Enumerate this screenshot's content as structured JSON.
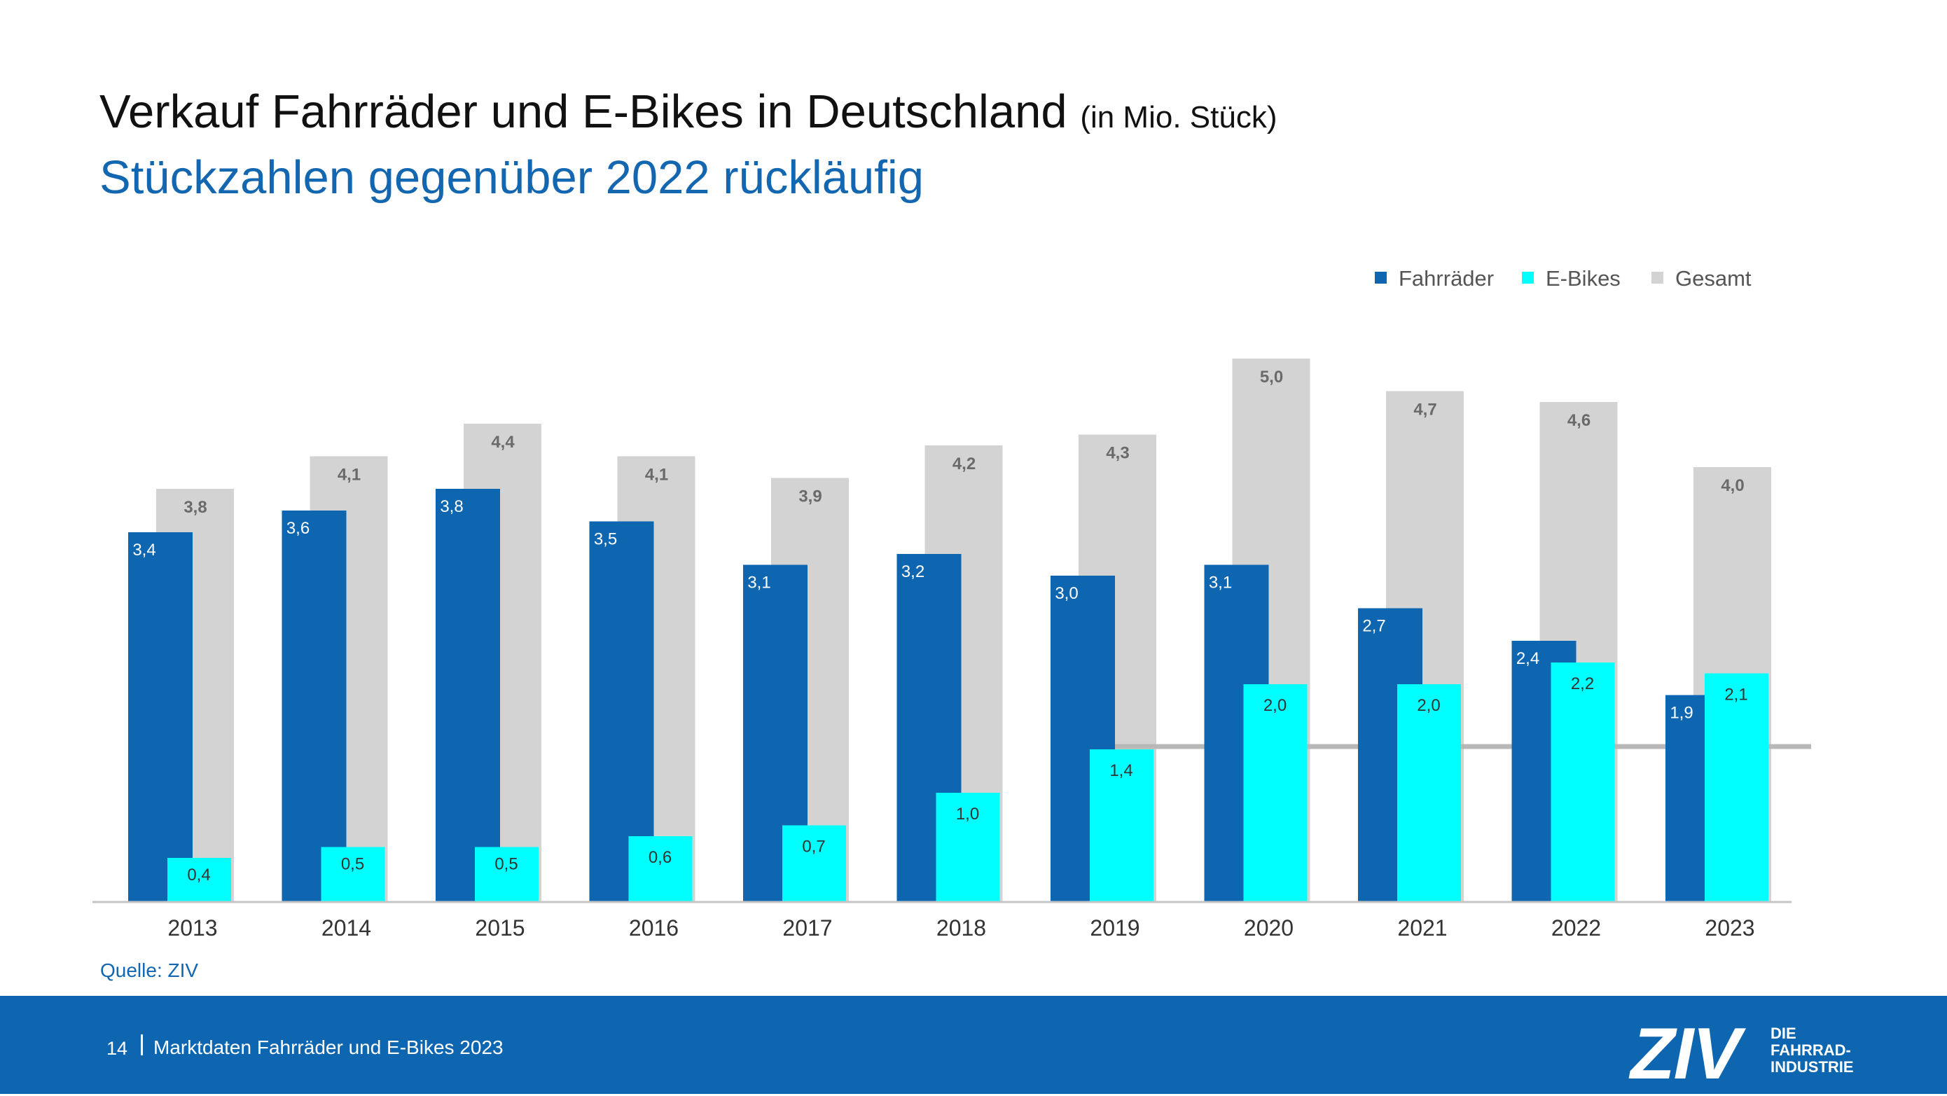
{
  "header": {
    "title": "Verkauf Fahrräder und E-Bikes in Deutschland",
    "title_unit": "(in Mio. Stück)",
    "subtitle": "Stückzahlen gegenüber 2022 rückläufig"
  },
  "source": "Quelle: ZIV",
  "footer": {
    "page_number": "14",
    "document_title": "Marktdaten Fahrräder und E-Bikes 2023",
    "logo_text": "ZIV",
    "logo_tagline": [
      "DIE",
      "FAHRRAD-",
      "INDUSTRIE"
    ]
  },
  "colors": {
    "fahrraeder": "#0f66b0",
    "ebikes": "#00ffff",
    "gesamt": "#d3d3d3",
    "reference_line": "#b8b8b8",
    "footer_bg": "#0f66b0",
    "subtitle": "#1366b0"
  },
  "chart_data": {
    "type": "bar",
    "categories": [
      "2013",
      "2014",
      "2015",
      "2016",
      "2017",
      "2018",
      "2019",
      "2020",
      "2021",
      "2022",
      "2023"
    ],
    "series": [
      {
        "name": "Fahrräder",
        "values": [
          3.4,
          3.6,
          3.8,
          3.5,
          3.1,
          3.2,
          3.0,
          3.1,
          2.7,
          2.4,
          1.9
        ],
        "labels": [
          "3,4",
          "3,6",
          "3,8",
          "3,5",
          "3,1",
          "3,2",
          "3,0",
          "3,1",
          "2,7",
          "2,4",
          "1,9"
        ]
      },
      {
        "name": "E-Bikes",
        "values": [
          0.4,
          0.5,
          0.5,
          0.6,
          0.7,
          1.0,
          1.4,
          2.0,
          2.0,
          2.2,
          2.1
        ],
        "labels": [
          "0,4",
          "0,5",
          "0,5",
          "0,6",
          "0,7",
          "1,0",
          "1,4",
          "2,0",
          "2,0",
          "2,2",
          "2,1"
        ]
      },
      {
        "name": "Gesamt",
        "values": [
          3.8,
          4.1,
          4.4,
          4.1,
          3.9,
          4.2,
          4.3,
          5.0,
          4.7,
          4.6,
          4.0
        ],
        "labels": [
          "3,8",
          "4,1",
          "4,4",
          "4,1",
          "3,9",
          "4,2",
          "4,3",
          "5,0",
          "4,7",
          "4,6",
          "4,0"
        ]
      }
    ],
    "reference_line": {
      "value": 1.4,
      "from_category": "2019",
      "to_category": "2023"
    },
    "legend_position": "top-right",
    "grid": false
  }
}
